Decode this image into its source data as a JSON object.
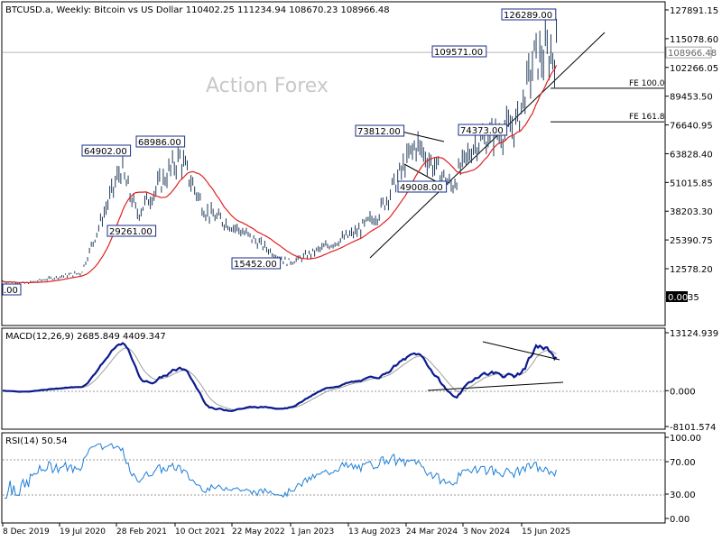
{
  "chart_header": "BTCUSD.a, Weekly:  Bitcoin vs US Dollar  110402.25 111234.94 108670.23 108966.48",
  "watermark": "Action Forex",
  "colors": {
    "background": "#ffffff",
    "frame": "#000000",
    "price_bars": "#1f3a5a",
    "moving_average": "#e02020",
    "macd_line": "#0b1b8f",
    "signal_line": "#a0a0a0",
    "rsi_line": "#1e7fd6",
    "grid_dotted": "#9a9a9a",
    "trendline": "#000000",
    "label_box_border": "#1a2e8a"
  },
  "chart_data": [
    {
      "type": "line",
      "name": "price",
      "x": [
        "2019-12-08",
        "2020-03-01",
        "2020-07-19",
        "2020-10-01",
        "2021-02-28",
        "2021-05-01",
        "2021-10-10",
        "2022-01-15",
        "2022-05-22",
        "2022-11-20",
        "2023-01-01",
        "2023-08-13",
        "2023-11-01",
        "2024-03-24",
        "2024-08-05",
        "2024-11-03",
        "2025-04-07",
        "2025-06-15",
        "2025-09-08"
      ],
      "y": [
        7000,
        6000,
        9200,
        10700,
        57000,
        37000,
        62000,
        38000,
        30000,
        15452,
        16600,
        29000,
        37000,
        68000,
        49008,
        69000,
        76000,
        106000,
        108966.48
      ],
      "y_axis_ticks": [
        "127891.15",
        "115078.60",
        "102266.05",
        "89453.50",
        "76640.95",
        "63828.40",
        "51015.85",
        "38203.30",
        "25390.75",
        "12578.20"
      ],
      "current_price_tag": "108966.48",
      "price_labels": [
        "126289.00",
        "109571.00",
        "73812.00",
        "74373.00",
        "64902.00",
        "68986.00",
        "49008.00",
        "29261.00",
        "15452.00"
      ],
      "left_edge_label": ".00",
      "zero_tag": "0.00",
      "zero_tag_suffix": "35",
      "fib_levels": [
        {
          "label": "FE 100.0",
          "value": 93000
        },
        {
          "label": "FE 161.8",
          "value": 78000
        }
      ]
    },
    {
      "type": "line",
      "title": "MACD(12,26,9) 2685.849 4409.347",
      "y_axis_ticks": [
        "13124.939",
        "0.000",
        "-8101.574"
      ],
      "ylim": [
        -8101.574,
        13124.939
      ]
    },
    {
      "type": "line",
      "title": "RSI(14) 50.54",
      "y_axis_ticks": [
        "100.00",
        "70.00",
        "30.00",
        "0.00"
      ],
      "levels": [
        70,
        30
      ],
      "ylim": [
        0,
        100
      ]
    }
  ],
  "x_axis_labels": [
    "8 Dec 2019",
    "19 Jul 2020",
    "28 Feb 2021",
    "10 Oct 2021",
    "22 May 2022",
    "1 Jan 2023",
    "13 Aug 2023",
    "24 Mar 2024",
    "3 Nov 2024",
    "15 Jun 2025"
  ]
}
